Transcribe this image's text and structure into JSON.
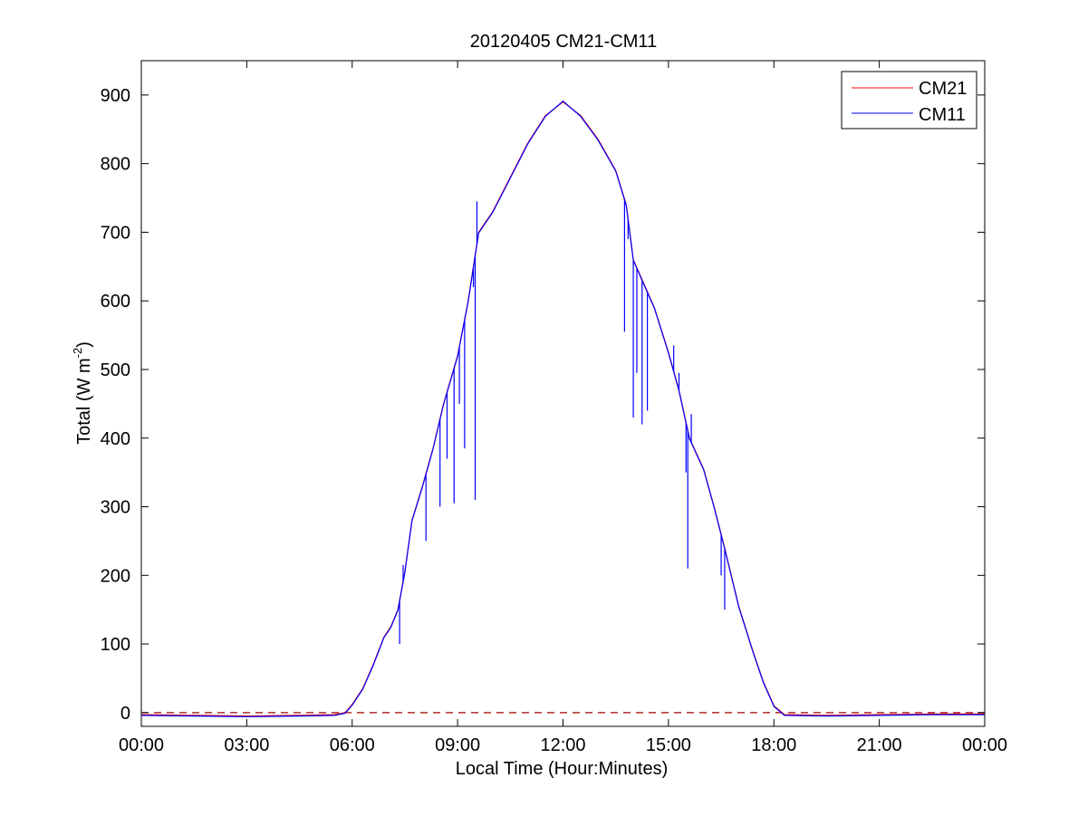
{
  "chart_data": {
    "type": "line",
    "title": "20120405 CM21-CM11",
    "xlabel": "Local Time (Hour:Minutes)",
    "ylabel_main": "Total (W m",
    "ylabel_sup": "-2",
    "ylabel_close": ")",
    "x_unit": "hours",
    "xlim": [
      0,
      24
    ],
    "ylim": [
      -20,
      950
    ],
    "xticks": [
      0,
      3,
      6,
      9,
      12,
      15,
      18,
      21,
      24
    ],
    "xtick_labels": [
      "00:00",
      "03:00",
      "06:00",
      "09:00",
      "12:00",
      "15:00",
      "18:00",
      "21:00",
      "00:00"
    ],
    "yticks": [
      0,
      100,
      200,
      300,
      400,
      500,
      600,
      700,
      800,
      900
    ],
    "ytick_labels": [
      "0",
      "100",
      "200",
      "300",
      "400",
      "500",
      "600",
      "700",
      "800",
      "900"
    ],
    "grid": false,
    "legend_position": "top-right",
    "reference_line": {
      "y": 0,
      "style": "dashed",
      "color": "#a00000"
    },
    "series": [
      {
        "name": "CM21",
        "color": "#ff0000",
        "points": [
          [
            0,
            -3
          ],
          [
            1.5,
            -4
          ],
          [
            3,
            -5
          ],
          [
            4.5,
            -4
          ],
          [
            5.5,
            -3
          ],
          [
            5.8,
            0
          ],
          [
            6.0,
            12
          ],
          [
            6.3,
            35
          ],
          [
            6.6,
            70
          ],
          [
            6.9,
            110
          ],
          [
            7.1,
            125
          ],
          [
            7.3,
            150
          ],
          [
            7.5,
            205
          ],
          [
            7.7,
            280
          ],
          [
            8.0,
            330
          ],
          [
            8.3,
            385
          ],
          [
            8.6,
            450
          ],
          [
            9.0,
            520
          ],
          [
            9.3,
            600
          ],
          [
            9.6,
            700
          ],
          [
            10.0,
            730
          ],
          [
            10.5,
            780
          ],
          [
            11.0,
            830
          ],
          [
            11.5,
            870
          ],
          [
            12.0,
            890
          ],
          [
            12.5,
            870
          ],
          [
            13.0,
            835
          ],
          [
            13.5,
            790
          ],
          [
            13.8,
            740
          ],
          [
            14.0,
            660
          ],
          [
            14.3,
            625
          ],
          [
            14.6,
            590
          ],
          [
            15.0,
            525
          ],
          [
            15.3,
            470
          ],
          [
            15.6,
            400
          ],
          [
            16.0,
            355
          ],
          [
            16.3,
            300
          ],
          [
            16.6,
            240
          ],
          [
            17.0,
            155
          ],
          [
            17.4,
            90
          ],
          [
            17.7,
            45
          ],
          [
            18.0,
            10
          ],
          [
            18.3,
            -3
          ],
          [
            19.5,
            -4
          ],
          [
            21.0,
            -3
          ],
          [
            22.5,
            -2
          ],
          [
            24.0,
            -2
          ]
        ]
      },
      {
        "name": "CM11",
        "color": "#0000ff",
        "points": [
          [
            0,
            -4
          ],
          [
            1.5,
            -5
          ],
          [
            3,
            -6
          ],
          [
            4.5,
            -5
          ],
          [
            5.5,
            -4
          ],
          [
            5.8,
            -1
          ],
          [
            6.0,
            11
          ],
          [
            6.3,
            34
          ],
          [
            6.6,
            69
          ],
          [
            6.9,
            109
          ],
          [
            7.1,
            124
          ],
          [
            7.3,
            149
          ],
          [
            7.5,
            204
          ],
          [
            7.7,
            279
          ],
          [
            8.0,
            329
          ],
          [
            8.3,
            384
          ],
          [
            8.6,
            449
          ],
          [
            9.0,
            519
          ],
          [
            9.3,
            599
          ],
          [
            9.6,
            699
          ],
          [
            10.0,
            729
          ],
          [
            10.5,
            779
          ],
          [
            11.0,
            829
          ],
          [
            11.5,
            869
          ],
          [
            12.0,
            891
          ],
          [
            12.5,
            869
          ],
          [
            13.0,
            834
          ],
          [
            13.5,
            789
          ],
          [
            13.8,
            739
          ],
          [
            14.0,
            659
          ],
          [
            14.3,
            624
          ],
          [
            14.6,
            589
          ],
          [
            15.0,
            524
          ],
          [
            15.3,
            469
          ],
          [
            15.6,
            399
          ],
          [
            16.0,
            354
          ],
          [
            16.3,
            299
          ],
          [
            16.6,
            239
          ],
          [
            17.0,
            154
          ],
          [
            17.4,
            89
          ],
          [
            17.7,
            44
          ],
          [
            18.0,
            9
          ],
          [
            18.3,
            -4
          ],
          [
            19.5,
            -5
          ],
          [
            21.0,
            -4
          ],
          [
            22.5,
            -3
          ],
          [
            24.0,
            -3
          ]
        ],
        "dips": [
          [
            7.35,
            100
          ],
          [
            7.45,
            215
          ],
          [
            8.1,
            250
          ],
          [
            8.5,
            300
          ],
          [
            8.7,
            370
          ],
          [
            8.9,
            305
          ],
          [
            9.05,
            450
          ],
          [
            9.2,
            385
          ],
          [
            9.45,
            620
          ],
          [
            9.5,
            310
          ],
          [
            9.55,
            745
          ],
          [
            13.75,
            555
          ],
          [
            13.85,
            690
          ],
          [
            14.0,
            430
          ],
          [
            14.1,
            495
          ],
          [
            14.25,
            420
          ],
          [
            14.4,
            440
          ],
          [
            15.15,
            535
          ],
          [
            15.3,
            495
          ],
          [
            15.5,
            350
          ],
          [
            15.55,
            210
          ],
          [
            15.65,
            435
          ],
          [
            16.5,
            200
          ],
          [
            16.6,
            150
          ]
        ]
      }
    ]
  }
}
